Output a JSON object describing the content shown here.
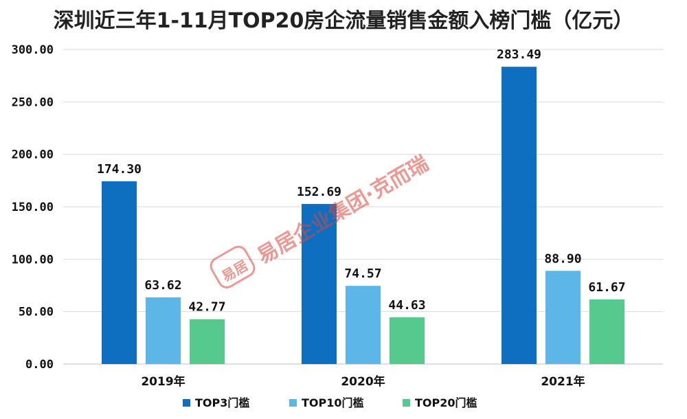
{
  "chart_data": {
    "type": "bar",
    "title": "深圳近三年1-11月TOP20房企流量销售金额入榜门槛（亿元）",
    "categories": [
      "2019年",
      "2020年",
      "2021年"
    ],
    "series": [
      {
        "name": "TOP3门槛",
        "color": "#0e6fc0",
        "values": [
          174.3,
          152.69,
          283.49
        ],
        "labels": [
          "174.30",
          "152.69",
          "283.49"
        ]
      },
      {
        "name": "TOP10门槛",
        "color": "#5cb6e8",
        "values": [
          63.62,
          74.57,
          88.9
        ],
        "labels": [
          "63.62",
          "74.57",
          "88.90"
        ]
      },
      {
        "name": "TOP20门槛",
        "color": "#56c98f",
        "values": [
          42.77,
          44.63,
          61.67
        ],
        "labels": [
          "42.77",
          "44.63",
          "61.67"
        ]
      }
    ],
    "yticks": [
      "0.00",
      "50.00",
      "100.00",
      "150.00",
      "200.00",
      "250.00",
      "300.00"
    ],
    "ylim": [
      0,
      300
    ],
    "xlabel": "",
    "ylabel": "",
    "grid": true,
    "legend": "bottom-center"
  },
  "watermark": {
    "text": "易居企业集团·克而瑞",
    "seal": "易居",
    "color": "#d9453a"
  }
}
